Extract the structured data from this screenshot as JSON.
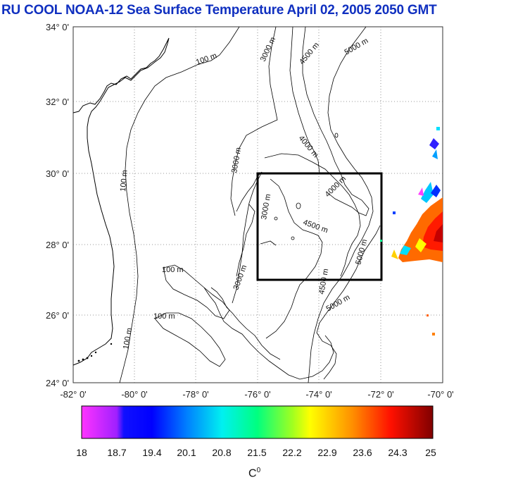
{
  "title": "RU COOL  NOAA-12 Sea Surface Temperature April 02, 2005 2050 GMT",
  "map": {
    "lat_labels": [
      "34° 0'",
      "32° 0'",
      "30° 0'",
      "28° 0'",
      "26° 0'",
      "24° 0'"
    ],
    "lon_labels": [
      "-82° 0'",
      "-80° 0'",
      "-78° 0'",
      "-76° 0'",
      "-74° 0'",
      "-72° 0'",
      "-70° 0'"
    ],
    "bathymetry_labels": [
      "100 m",
      "100 m",
      "100 m",
      "100 m",
      "100 m",
      "3000 m",
      "3000 m",
      "3000 m",
      "3000 m",
      "4000 m",
      "4000 m",
      "4500 m",
      "4500 m",
      "4500 m",
      "5000 m",
      "5000 m",
      "5000 m"
    ],
    "colors": {
      "box": "#000000",
      "coast": "#000000",
      "grid": "#555555",
      "title": "#1030c0"
    }
  },
  "colorbar": {
    "min": 18,
    "max": 25,
    "tick_labels": [
      "18",
      "18.7",
      "19.4",
      "20.1",
      "20.8",
      "21.5",
      "22.2",
      "22.9",
      "23.6",
      "24.3",
      "25"
    ],
    "unit": "C",
    "unit_sup": "0",
    "colors": [
      "#ff33ff",
      "#7a00ff",
      "#0000ff",
      "#0070ff",
      "#00e0ff",
      "#00ff90",
      "#c0ff00",
      "#ffff00",
      "#ff9000",
      "#ff2000",
      "#ff0000",
      "#8a0000"
    ]
  }
}
